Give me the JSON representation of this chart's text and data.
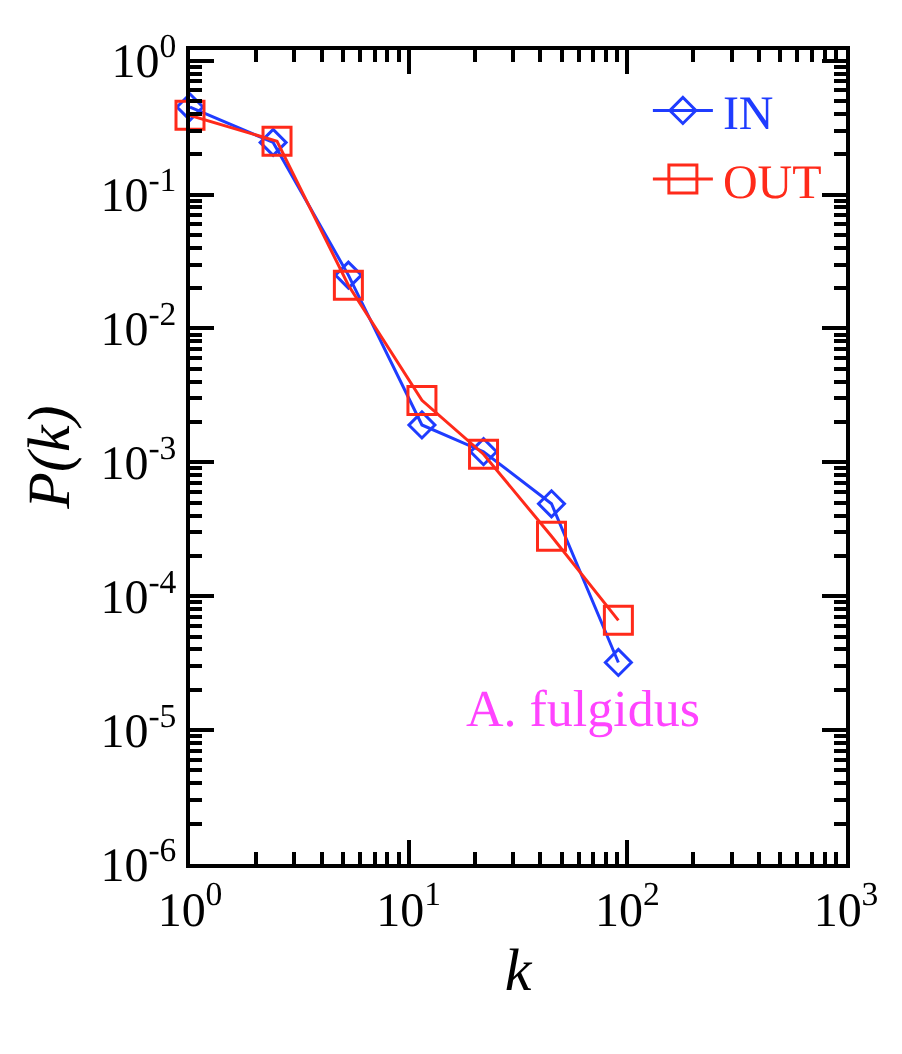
{
  "chart_data": {
    "type": "line",
    "xlabel": "k",
    "ylabel": "P(k)",
    "log": "xy",
    "grid": false,
    "legend": "top right",
    "line_style": "solid",
    "xlim": [
      1,
      1000
    ],
    "ylim": [
      1e-06,
      1.2
    ],
    "xticks": [
      {
        "value": 1,
        "label": "10$^{0}$"
      },
      {
        "value": 10,
        "label": "10$^{1}$"
      },
      {
        "value": 100,
        "label": "10$^{2}$"
      },
      {
        "value": 1000,
        "label": "10$^{3}$"
      }
    ],
    "yticks": [
      {
        "value": 1e-06,
        "label": "10$^{-6}$"
      },
      {
        "value": 1e-05,
        "label": "10$^{-5}$"
      },
      {
        "value": 0.0001,
        "label": "10$^{-4}$"
      },
      {
        "value": 0.001,
        "label": "10$^{-3}$"
      },
      {
        "value": 0.01,
        "label": "10$^{-2}$"
      },
      {
        "value": 0.1,
        "label": "10$^{-1}$"
      },
      {
        "value": 1,
        "label": "10$^{0}$"
      }
    ],
    "series": [
      {
        "name": "IN",
        "color": "#1f3cff",
        "marker": "diamond",
        "x": [
          1,
          2.4,
          5.3,
          11.5,
          22,
          45,
          91
        ],
        "values": [
          0.45,
          0.245,
          0.025,
          0.0019,
          0.0012,
          0.00049,
          3.2e-05
        ]
      },
      {
        "name": "OUT",
        "color": "#ff2a1a",
        "marker": "square",
        "x": [
          1,
          2.5,
          5.3,
          11.5,
          22,
          45,
          91
        ],
        "values": [
          0.39,
          0.25,
          0.021,
          0.0029,
          0.00115,
          0.00028,
          6.6e-05
        ]
      }
    ],
    "annotations": [
      "A. fulgidus"
    ]
  }
}
